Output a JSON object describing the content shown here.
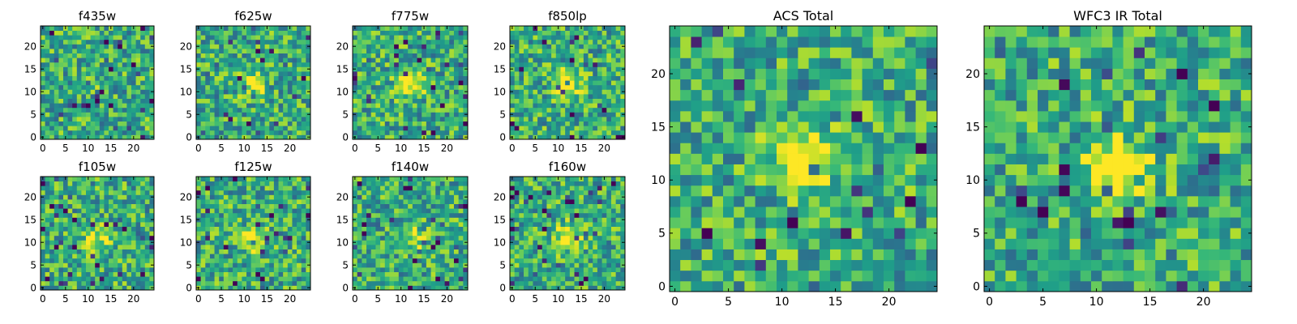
{
  "chart_data": [
    {
      "type": "heatmap",
      "title": "f435w",
      "colormap": "viridis",
      "grid_size": 25,
      "xlim": [
        -0.5,
        24.5
      ],
      "ylim": [
        -0.5,
        24.5
      ],
      "xticks": [
        0,
        5,
        10,
        15,
        20
      ],
      "yticks": [
        0,
        5,
        10,
        15,
        20
      ],
      "grid": false,
      "source_center": [
        12,
        12
      ],
      "source_strength": 0.05,
      "noise_seed": 11
    },
    {
      "type": "heatmap",
      "title": "f625w",
      "colormap": "viridis",
      "grid_size": 25,
      "xlim": [
        -0.5,
        24.5
      ],
      "ylim": [
        -0.5,
        24.5
      ],
      "xticks": [
        0,
        5,
        10,
        15,
        20
      ],
      "yticks": [
        0,
        5,
        10,
        15,
        20
      ],
      "grid": false,
      "source_center": [
        12,
        12
      ],
      "source_strength": 0.3,
      "noise_seed": 23
    },
    {
      "type": "heatmap",
      "title": "f775w",
      "colormap": "viridis",
      "grid_size": 25,
      "xlim": [
        -0.5,
        24.5
      ],
      "ylim": [
        -0.5,
        24.5
      ],
      "xticks": [
        0,
        5,
        10,
        15,
        20
      ],
      "yticks": [
        0,
        5,
        10,
        15,
        20
      ],
      "grid": false,
      "source_center": [
        12,
        12
      ],
      "source_strength": 0.5,
      "noise_seed": 37
    },
    {
      "type": "heatmap",
      "title": "f850lp",
      "colormap": "viridis",
      "grid_size": 25,
      "xlim": [
        -0.5,
        24.5
      ],
      "ylim": [
        -0.5,
        24.5
      ],
      "xticks": [
        0,
        5,
        10,
        15,
        20
      ],
      "yticks": [
        0,
        5,
        10,
        15,
        20
      ],
      "grid": false,
      "source_center": [
        12,
        12
      ],
      "source_strength": 0.45,
      "noise_seed": 41
    },
    {
      "type": "heatmap",
      "title": "f105w",
      "colormap": "viridis",
      "grid_size": 25,
      "xlim": [
        -0.5,
        24.5
      ],
      "ylim": [
        -0.5,
        24.5
      ],
      "xticks": [
        0,
        5,
        10,
        15,
        20
      ],
      "yticks": [
        0,
        5,
        10,
        15,
        20
      ],
      "grid": false,
      "source_center": [
        12,
        11
      ],
      "source_strength": 0.35,
      "noise_seed": 53
    },
    {
      "type": "heatmap",
      "title": "f125w",
      "colormap": "viridis",
      "grid_size": 25,
      "xlim": [
        -0.5,
        24.5
      ],
      "ylim": [
        -0.5,
        24.5
      ],
      "xticks": [
        0,
        5,
        10,
        15,
        20
      ],
      "yticks": [
        0,
        5,
        10,
        15,
        20
      ],
      "grid": false,
      "source_center": [
        12,
        11
      ],
      "source_strength": 0.4,
      "noise_seed": 67
    },
    {
      "type": "heatmap",
      "title": "f140w",
      "colormap": "viridis",
      "grid_size": 25,
      "xlim": [
        -0.5,
        24.5
      ],
      "ylim": [
        -0.5,
        24.5
      ],
      "xticks": [
        0,
        5,
        10,
        15,
        20
      ],
      "yticks": [
        0,
        5,
        10,
        15,
        20
      ],
      "grid": false,
      "source_center": [
        12,
        11
      ],
      "source_strength": 0.3,
      "noise_seed": 71
    },
    {
      "type": "heatmap",
      "title": "f160w",
      "colormap": "viridis",
      "grid_size": 25,
      "xlim": [
        -0.5,
        24.5
      ],
      "ylim": [
        -0.5,
        24.5
      ],
      "xticks": [
        0,
        5,
        10,
        15,
        20
      ],
      "yticks": [
        0,
        5,
        10,
        15,
        20
      ],
      "grid": false,
      "source_center": [
        12,
        11
      ],
      "source_strength": 0.4,
      "noise_seed": 83
    },
    {
      "type": "heatmap",
      "title": "ACS Total",
      "colormap": "viridis",
      "grid_size": 25,
      "xlim": [
        -0.5,
        24.5
      ],
      "ylim": [
        -0.5,
        24.5
      ],
      "xticks": [
        0,
        5,
        10,
        15,
        20
      ],
      "yticks": [
        0,
        5,
        10,
        15,
        20
      ],
      "grid": false,
      "source_center": [
        12,
        12
      ],
      "source_strength": 0.6,
      "noise_seed": 97
    },
    {
      "type": "heatmap",
      "title": "WFC3 IR Total",
      "colormap": "viridis",
      "grid_size": 25,
      "xlim": [
        -0.5,
        24.5
      ],
      "ylim": [
        -0.5,
        24.5
      ],
      "xticks": [
        0,
        5,
        10,
        15,
        20
      ],
      "yticks": [
        0,
        5,
        10,
        15,
        20
      ],
      "grid": false,
      "source_center": [
        12,
        11
      ],
      "source_strength": 0.55,
      "noise_seed": 101
    }
  ]
}
